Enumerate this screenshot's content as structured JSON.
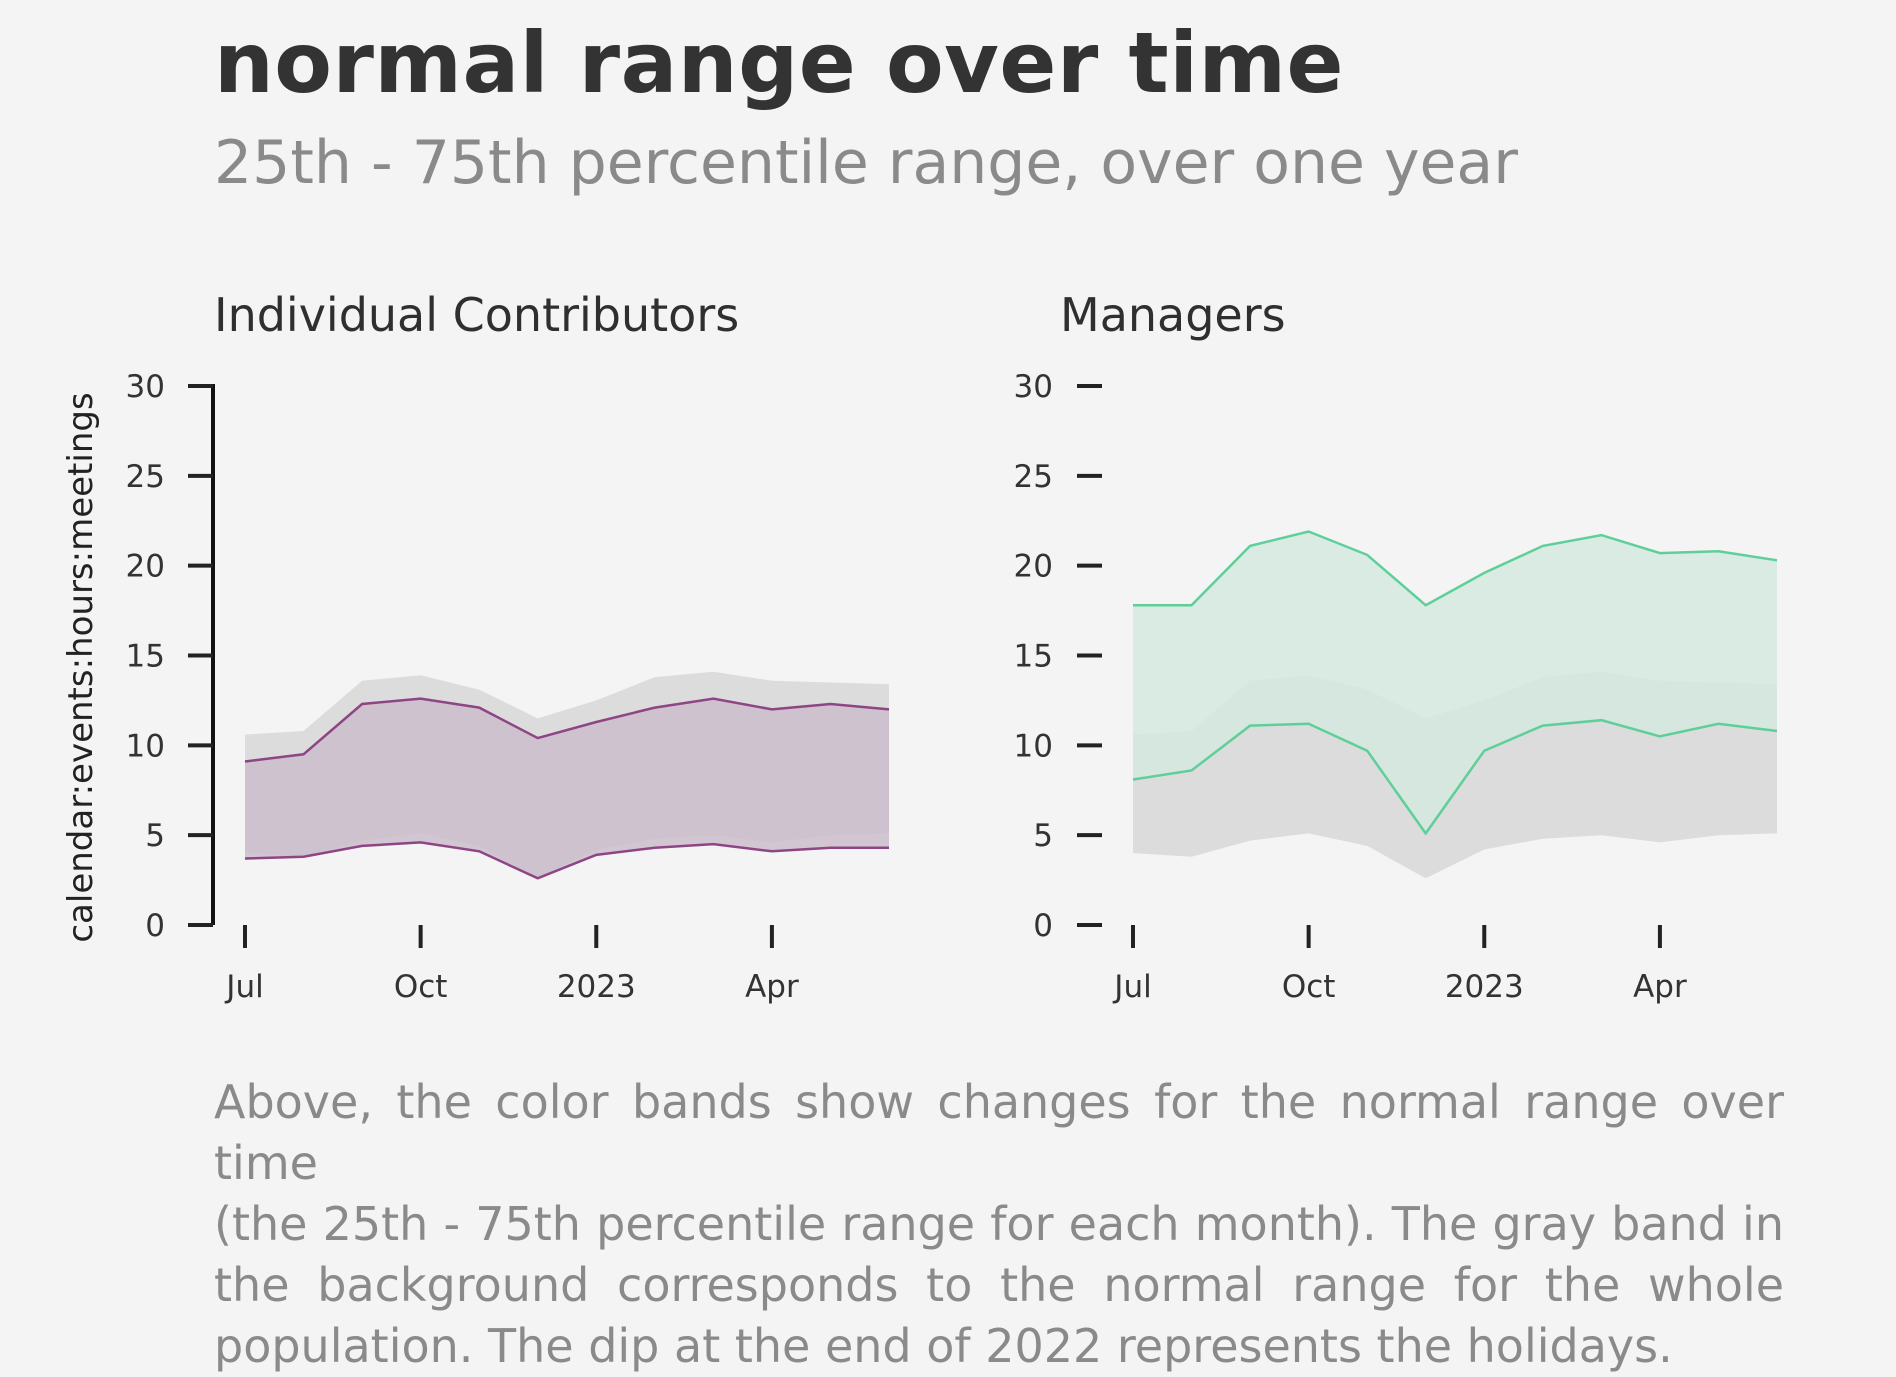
{
  "title": "normal range over time",
  "subtitle": "25th - 75th percentile range, over one year",
  "caption": [
    "Above, the color bands show changes for the normal range over time",
    "(the 25th - 75th percentile range for each month). The gray band in",
    "the background corresponds to the normal range for the whole",
    "population. The dip at the end of 2022 represents the holidays."
  ],
  "chart_data": [
    {
      "type": "area",
      "title": "Individual Contributors",
      "ylabel": "calendar:events:hours:meetings",
      "xlabel": "",
      "x": [
        "2022-07",
        "2022-08",
        "2022-09",
        "2022-10",
        "2022-11",
        "2022-12",
        "2023-01",
        "2023-02",
        "2023-03",
        "2023-04",
        "2023-05",
        "2023-06"
      ],
      "x_ticks": [
        "Jul",
        "Oct",
        "2023",
        "Apr"
      ],
      "y_ticks": [
        0,
        5,
        10,
        15,
        20,
        25,
        30
      ],
      "ylim": [
        0,
        30
      ],
      "color": "#8e4585",
      "band_fill": "#cdbdcd",
      "series": [
        {
          "values": [
            9.1,
            9.5,
            12.3,
            12.6,
            12.1,
            10.4,
            11.3,
            12.1,
            12.6,
            12.0,
            12.3,
            12.0
          ]
        },
        {
          "values": [
            3.7,
            3.8,
            4.4,
            4.6,
            4.1,
            2.6,
            3.9,
            4.3,
            4.5,
            4.1,
            4.3,
            4.3
          ]
        }
      ],
      "population_band": {
        "upper": [
          10.6,
          10.8,
          13.6,
          13.9,
          13.1,
          11.5,
          12.5,
          13.8,
          14.1,
          13.6,
          13.5,
          13.4
        ],
        "lower": [
          4.0,
          3.8,
          4.7,
          5.1,
          4.4,
          2.6,
          4.2,
          4.8,
          5.0,
          4.6,
          5.0,
          5.1
        ],
        "color": "#dcdcdc"
      },
      "grid": false,
      "axis_spine": true
    },
    {
      "type": "area",
      "title": "Managers",
      "ylabel": "",
      "xlabel": "",
      "x": [
        "2022-07",
        "2022-08",
        "2022-09",
        "2022-10",
        "2022-11",
        "2022-12",
        "2023-01",
        "2023-02",
        "2023-03",
        "2023-04",
        "2023-05",
        "2023-06"
      ],
      "x_ticks": [
        "Jul",
        "Oct",
        "2023",
        "Apr"
      ],
      "y_ticks": [
        0,
        5,
        10,
        15,
        20,
        25,
        30
      ],
      "ylim": [
        0,
        30
      ],
      "color": "#5fcf9a",
      "band_fill": "#d3e9df",
      "series": [
        {
          "values": [
            17.8,
            17.8,
            21.1,
            21.9,
            20.6,
            17.8,
            19.6,
            21.1,
            21.7,
            20.7,
            20.8,
            20.3
          ]
        },
        {
          "values": [
            8.1,
            8.6,
            11.1,
            11.2,
            9.7,
            5.1,
            9.7,
            11.1,
            11.4,
            10.5,
            11.2,
            10.8
          ]
        }
      ],
      "population_band": {
        "upper": [
          10.6,
          10.8,
          13.6,
          13.9,
          13.1,
          11.5,
          12.5,
          13.8,
          14.1,
          13.6,
          13.5,
          13.4
        ],
        "lower": [
          4.0,
          3.8,
          4.7,
          5.1,
          4.4,
          2.6,
          4.2,
          4.8,
          5.0,
          4.6,
          5.0,
          5.1
        ],
        "color": "#dcdcdc"
      },
      "grid": false,
      "axis_spine": false
    }
  ]
}
